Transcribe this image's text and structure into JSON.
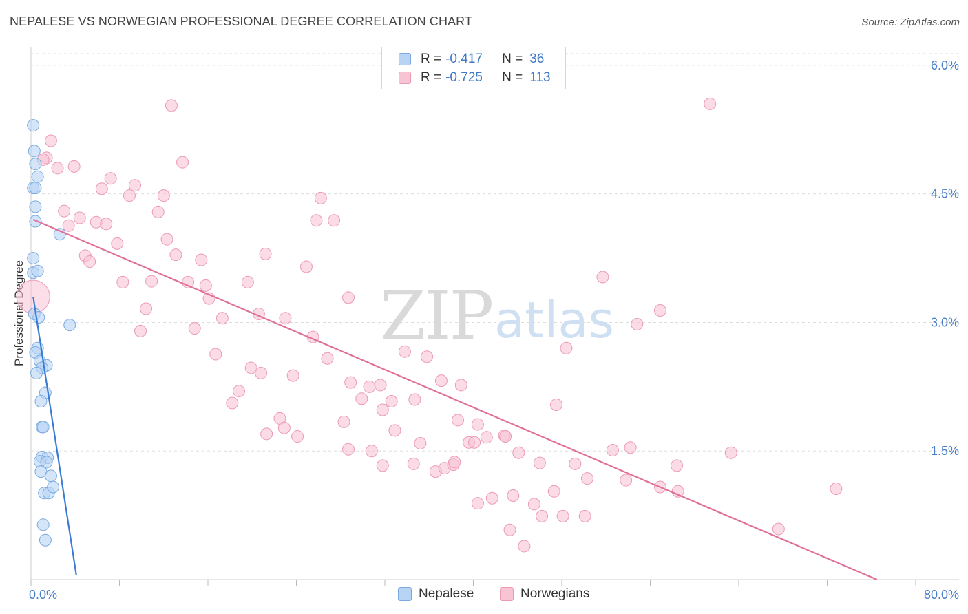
{
  "header": {
    "title": "NEPALESE VS NORWEGIAN PROFESSIONAL DEGREE CORRELATION CHART",
    "source": "Source: ZipAtlas.com"
  },
  "legend": {
    "rows": [
      {
        "r_label": "R =",
        "r_value": "-0.417",
        "n_label": "N =",
        "n_value": "36"
      },
      {
        "r_label": "R =",
        "r_value": "-0.725",
        "n_label": "N =",
        "n_value": "113"
      }
    ]
  },
  "bottom_legend": [
    "Nepalese",
    "Norwegians"
  ],
  "watermark": {
    "zip": "ZIP",
    "atlas": "atlas"
  },
  "colors": {
    "nepalese_fill": "#b8d4f5",
    "nepalese_stroke": "#7aaae0",
    "nepalese_line": "#3a7bd5",
    "norwegian_fill": "#f8c3d3",
    "norwegian_stroke": "#ec9ab4",
    "norwegian_line": "#e0709a",
    "tick": "#4a7fc8",
    "grid": "#dddddd"
  },
  "chart_data": {
    "type": "scatter",
    "title": "NEPALESE VS NORWEGIAN PROFESSIONAL DEGREE CORRELATION CHART",
    "xlabel": "",
    "ylabel": "Professional Degree",
    "xlim": [
      0,
      80
    ],
    "ylim": [
      0,
      6.2
    ],
    "x_tick_labels": [
      "0.0%",
      "80.0%"
    ],
    "y_ticks": [
      1.5,
      3.0,
      4.5,
      6.0
    ],
    "y_tick_labels": [
      "1.5%",
      "3.0%",
      "4.5%",
      "6.0%"
    ],
    "grid": true,
    "series": [
      {
        "name": "Nepalese",
        "r": -0.417,
        "n": 36,
        "trend": {
          "x1": 0.2,
          "y1": 3.3,
          "x2": 4.1,
          "y2": 0.05
        },
        "points": [
          [
            0.2,
            5.3
          ],
          [
            0.3,
            5.0
          ],
          [
            0.4,
            4.85
          ],
          [
            0.6,
            4.7
          ],
          [
            0.2,
            4.57
          ],
          [
            0.4,
            4.57
          ],
          [
            0.4,
            4.35
          ],
          [
            0.4,
            4.18
          ],
          [
            2.6,
            4.03
          ],
          [
            0.2,
            3.75
          ],
          [
            0.2,
            3.58
          ],
          [
            0.3,
            3.1
          ],
          [
            0.7,
            3.06
          ],
          [
            3.5,
            2.97
          ],
          [
            0.6,
            2.7
          ],
          [
            0.4,
            2.65
          ],
          [
            0.8,
            2.55
          ],
          [
            1.4,
            2.5
          ],
          [
            1.0,
            2.47
          ],
          [
            0.5,
            2.41
          ],
          [
            1.3,
            2.18
          ],
          [
            0.9,
            2.08
          ],
          [
            1.0,
            1.78
          ],
          [
            1.1,
            1.78
          ],
          [
            1.0,
            1.43
          ],
          [
            1.5,
            1.42
          ],
          [
            0.8,
            1.38
          ],
          [
            1.4,
            1.37
          ],
          [
            0.9,
            1.26
          ],
          [
            1.8,
            1.21
          ],
          [
            1.2,
            1.01
          ],
          [
            1.6,
            1.01
          ],
          [
            2.0,
            1.08
          ],
          [
            1.1,
            0.64
          ],
          [
            1.3,
            0.46
          ],
          [
            0.6,
            3.6
          ]
        ]
      },
      {
        "name": "Norwegians",
        "r": -0.725,
        "n": 113,
        "trend": {
          "x1": 0.2,
          "y1": 4.2,
          "x2": 76.5,
          "y2": 0.0
        },
        "points": [
          [
            0.2,
            3.3
          ],
          [
            12.7,
            5.53
          ],
          [
            61.4,
            5.55
          ],
          [
            1.8,
            5.12
          ],
          [
            1.4,
            4.92
          ],
          [
            1.1,
            4.9
          ],
          [
            2.4,
            4.8
          ],
          [
            3.9,
            4.82
          ],
          [
            13.7,
            4.87
          ],
          [
            7.2,
            4.68
          ],
          [
            6.4,
            4.56
          ],
          [
            9.4,
            4.6
          ],
          [
            8.9,
            4.48
          ],
          [
            12.0,
            4.48
          ],
          [
            3.0,
            4.3
          ],
          [
            11.5,
            4.29
          ],
          [
            26.2,
            4.45
          ],
          [
            4.4,
            4.22
          ],
          [
            3.4,
            4.13
          ],
          [
            5.9,
            4.17
          ],
          [
            6.8,
            4.15
          ],
          [
            25.8,
            4.19
          ],
          [
            27.4,
            4.19
          ],
          [
            12.3,
            3.97
          ],
          [
            7.8,
            3.92
          ],
          [
            4.9,
            3.78
          ],
          [
            13.1,
            3.79
          ],
          [
            21.2,
            3.8
          ],
          [
            15.4,
            3.73
          ],
          [
            5.3,
            3.71
          ],
          [
            24.9,
            3.65
          ],
          [
            8.3,
            3.47
          ],
          [
            10.9,
            3.48
          ],
          [
            14.2,
            3.47
          ],
          [
            15.8,
            3.43
          ],
          [
            19.6,
            3.47
          ],
          [
            16.1,
            3.28
          ],
          [
            28.7,
            3.29
          ],
          [
            51.7,
            3.53
          ],
          [
            10.4,
            3.16
          ],
          [
            20.6,
            3.1
          ],
          [
            23.0,
            3.05
          ],
          [
            17.3,
            3.05
          ],
          [
            14.8,
            2.93
          ],
          [
            9.9,
            2.9
          ],
          [
            56.9,
            3.14
          ],
          [
            54.8,
            2.98
          ],
          [
            25.5,
            2.83
          ],
          [
            16.7,
            2.63
          ],
          [
            26.8,
            2.58
          ],
          [
            33.8,
            2.66
          ],
          [
            35.8,
            2.6
          ],
          [
            48.4,
            2.7
          ],
          [
            19.9,
            2.47
          ],
          [
            20.8,
            2.41
          ],
          [
            23.7,
            2.38
          ],
          [
            28.9,
            2.3
          ],
          [
            30.6,
            2.25
          ],
          [
            31.6,
            2.27
          ],
          [
            37.1,
            2.32
          ],
          [
            38.9,
            2.27
          ],
          [
            18.8,
            2.2
          ],
          [
            18.2,
            2.06
          ],
          [
            29.9,
            2.11
          ],
          [
            32.6,
            2.08
          ],
          [
            34.7,
            2.1
          ],
          [
            47.5,
            2.04
          ],
          [
            31.8,
            1.98
          ],
          [
            22.5,
            1.88
          ],
          [
            28.3,
            1.84
          ],
          [
            38.6,
            1.86
          ],
          [
            40.4,
            1.81
          ],
          [
            22.9,
            1.77
          ],
          [
            21.3,
            1.7
          ],
          [
            24.1,
            1.67
          ],
          [
            32.9,
            1.74
          ],
          [
            35.2,
            1.59
          ],
          [
            39.6,
            1.6
          ],
          [
            40.1,
            1.6
          ],
          [
            41.2,
            1.66
          ],
          [
            42.8,
            1.68
          ],
          [
            42.9,
            1.67
          ],
          [
            28.7,
            1.52
          ],
          [
            30.8,
            1.5
          ],
          [
            44.1,
            1.48
          ],
          [
            46.0,
            1.36
          ],
          [
            49.2,
            1.35
          ],
          [
            52.6,
            1.51
          ],
          [
            54.2,
            1.54
          ],
          [
            63.3,
            1.48
          ],
          [
            31.8,
            1.33
          ],
          [
            34.6,
            1.35
          ],
          [
            36.6,
            1.26
          ],
          [
            37.4,
            1.3
          ],
          [
            38.2,
            1.34
          ],
          [
            38.3,
            1.37
          ],
          [
            58.4,
            1.33
          ],
          [
            50.3,
            1.18
          ],
          [
            53.8,
            1.16
          ],
          [
            56.9,
            1.08
          ],
          [
            58.5,
            1.03
          ],
          [
            72.8,
            1.06
          ],
          [
            40.4,
            0.89
          ],
          [
            41.7,
            0.95
          ],
          [
            43.6,
            0.98
          ],
          [
            47.3,
            1.03
          ],
          [
            45.5,
            0.88
          ],
          [
            46.2,
            0.74
          ],
          [
            48.1,
            0.74
          ],
          [
            50.1,
            0.74
          ],
          [
            43.3,
            0.58
          ],
          [
            67.6,
            0.59
          ],
          [
            44.6,
            0.39
          ]
        ]
      }
    ]
  }
}
